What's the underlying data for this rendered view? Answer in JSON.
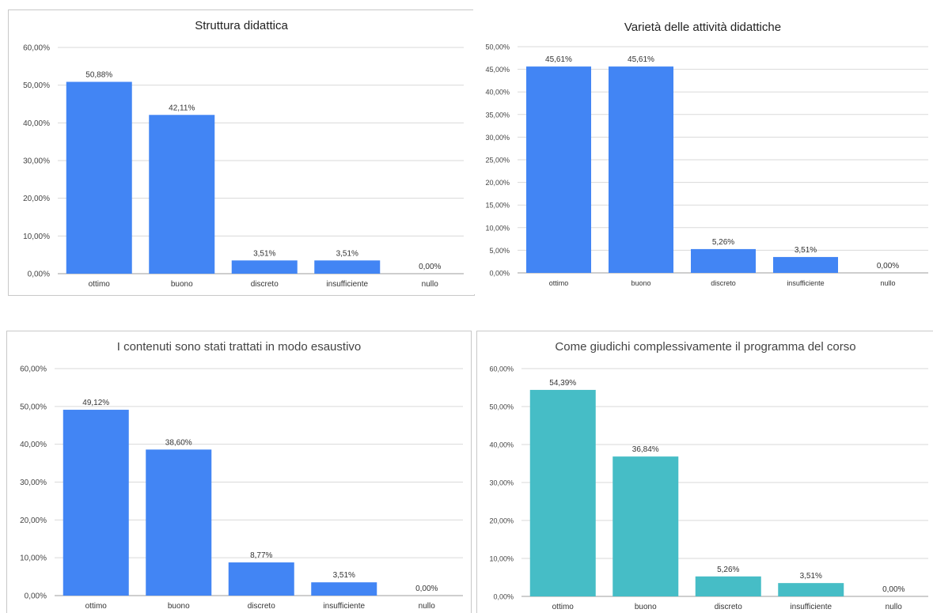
{
  "chart_data": [
    {
      "type": "bar",
      "title": "Struttura didattica",
      "categories": [
        "ottimo",
        "buono",
        "discreto",
        "insufficiente",
        "nullo"
      ],
      "values": [
        50.88,
        42.11,
        3.51,
        3.51,
        0.0
      ],
      "value_labels": [
        "50,88%",
        "42,11%",
        "3,51%",
        "3,51%",
        "0,00%"
      ],
      "y_ticks": [
        0,
        10,
        20,
        30,
        40,
        50,
        60
      ],
      "y_tick_labels": [
        "0,00%",
        "10,00%",
        "20,00%",
        "30,00%",
        "40,00%",
        "50,00%",
        "60,00%"
      ],
      "ylim": [
        0,
        60
      ],
      "grid": true,
      "bar_color": "#4285f4"
    },
    {
      "type": "bar",
      "title": "Varietà delle attività didattiche",
      "categories": [
        "ottimo",
        "buono",
        "discreto",
        "insufficiente",
        "nullo"
      ],
      "values": [
        45.61,
        45.61,
        5.26,
        3.51,
        0.0
      ],
      "value_labels": [
        "45,61%",
        "45,61%",
        "5,26%",
        "3,51%",
        "0,00%"
      ],
      "y_ticks": [
        0,
        5,
        10,
        15,
        20,
        25,
        30,
        35,
        40,
        45,
        50
      ],
      "y_tick_labels": [
        "0,00%",
        "5,00%",
        "10,00%",
        "15,00%",
        "20,00%",
        "25,00%",
        "30,00%",
        "35,00%",
        "40,00%",
        "45,00%",
        "50,00%"
      ],
      "ylim": [
        0,
        50
      ],
      "grid": true,
      "bar_color": "#4285f4"
    },
    {
      "type": "bar",
      "title": "I contenuti sono stati trattati in modo esaustivo",
      "categories": [
        "ottimo",
        "buono",
        "discreto",
        "insufficiente",
        "nullo"
      ],
      "values": [
        49.12,
        38.6,
        8.77,
        3.51,
        0.0
      ],
      "value_labels": [
        "49,12%",
        "38,60%",
        "8,77%",
        "3,51%",
        "0,00%"
      ],
      "y_ticks": [
        0,
        10,
        20,
        30,
        40,
        50,
        60
      ],
      "y_tick_labels": [
        "0,00%",
        "10,00%",
        "20,00%",
        "30,00%",
        "40,00%",
        "50,00%",
        "60,00%"
      ],
      "ylim": [
        0,
        60
      ],
      "grid": true,
      "bar_color": "#4285f4"
    },
    {
      "type": "bar",
      "title": "Come giudichi complessivamente il programma del corso",
      "categories": [
        "ottimo",
        "buono",
        "discreto",
        "insufficiente",
        "nullo"
      ],
      "values": [
        54.39,
        36.84,
        5.26,
        3.51,
        0.0
      ],
      "value_labels": [
        "54,39%",
        "36,84%",
        "5,26%",
        "3,51%",
        "0,00%"
      ],
      "y_ticks": [
        0,
        10,
        20,
        30,
        40,
        50,
        60
      ],
      "y_tick_labels": [
        "0,00%",
        "10,00%",
        "20,00%",
        "30,00%",
        "40,00%",
        "50,00%",
        "60,00%"
      ],
      "ylim": [
        0,
        60
      ],
      "grid": true,
      "bar_color": "#46bdc6"
    }
  ]
}
